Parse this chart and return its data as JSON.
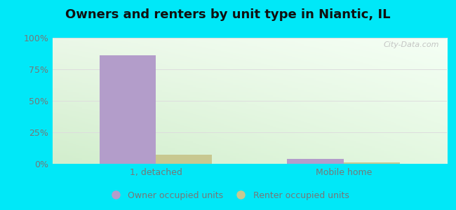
{
  "title": "Owners and renters by unit type in Niantic, IL",
  "categories": [
    "1, detached",
    "Mobile home"
  ],
  "owner_values": [
    86,
    4
  ],
  "renter_values": [
    7,
    1
  ],
  "owner_color": "#b39dca",
  "renter_color": "#c8c890",
  "ylim": [
    0,
    100
  ],
  "yticks": [
    0,
    25,
    50,
    75,
    100
  ],
  "ytick_labels": [
    "0%",
    "25%",
    "50%",
    "75%",
    "100%"
  ],
  "bar_width": 0.3,
  "bg_outer": "#00e8f8",
  "bg_tl": [
    235,
    248,
    232
  ],
  "bg_tr": [
    245,
    255,
    245
  ],
  "bg_bl": [
    210,
    238,
    205
  ],
  "bg_br": [
    228,
    248,
    225
  ],
  "watermark": "City-Data.com",
  "legend_owner": "Owner occupied units",
  "legend_renter": "Renter occupied units",
  "title_fontsize": 13,
  "axis_label_fontsize": 9,
  "legend_fontsize": 9,
  "grid_color": "#dddddd",
  "tick_color": "#777777",
  "title_color": "#111111"
}
